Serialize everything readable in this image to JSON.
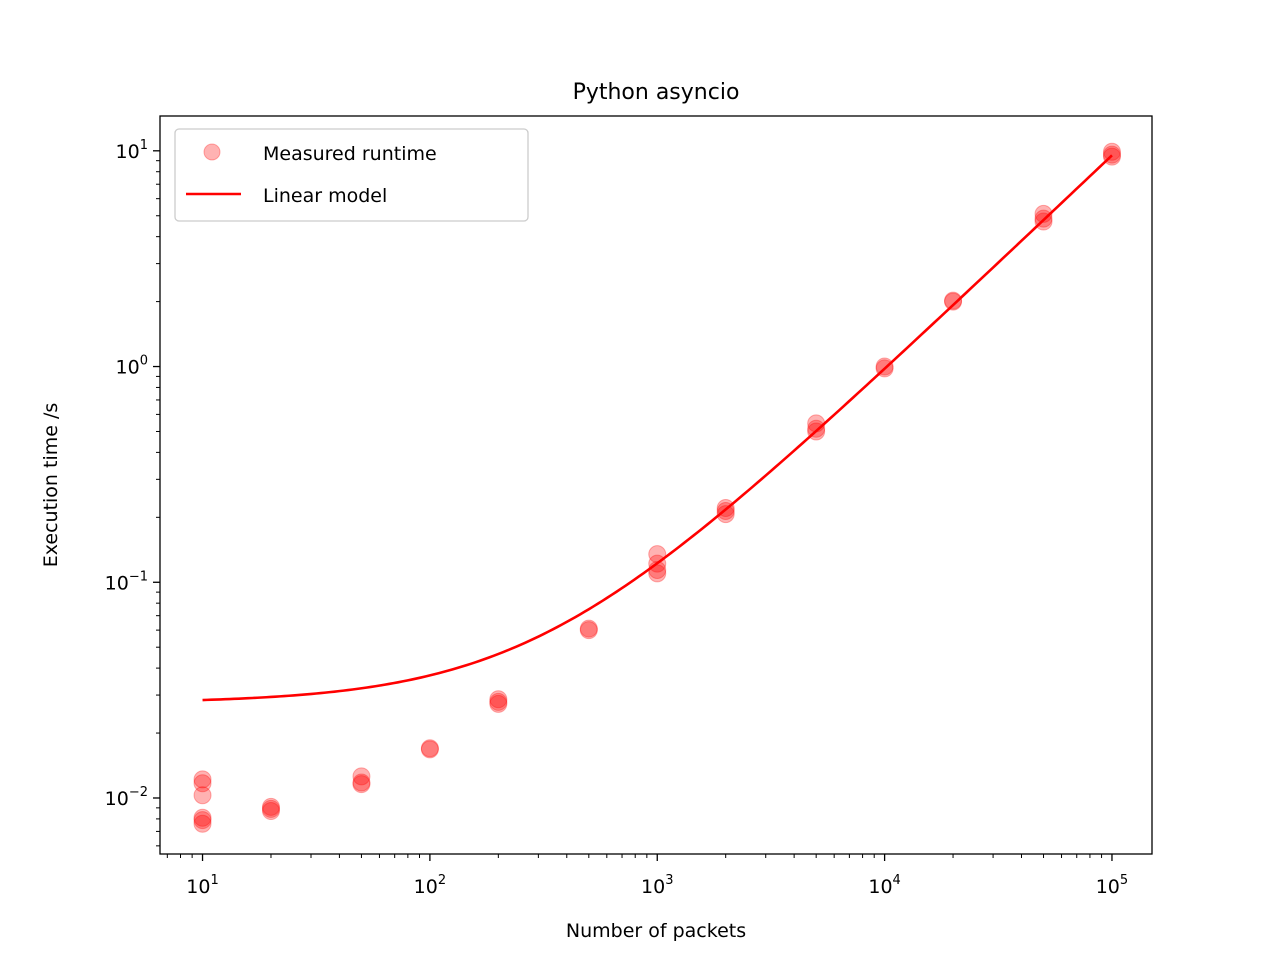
{
  "chart_data": {
    "type": "scatter",
    "title": "Python asyncio",
    "xlabel": "Number of packets",
    "ylabel": "Execution time /s",
    "xscale": "log",
    "yscale": "log",
    "xlim": [
      6.5,
      150000
    ],
    "ylim": [
      0.0055,
      14.5
    ],
    "grid": false,
    "legend_position": "top-left",
    "x_ticks": [
      {
        "base": "10",
        "exp": "1",
        "value": 10
      },
      {
        "base": "10",
        "exp": "2",
        "value": 100
      },
      {
        "base": "10",
        "exp": "3",
        "value": 1000
      },
      {
        "base": "10",
        "exp": "4",
        "value": 10000
      },
      {
        "base": "10",
        "exp": "5",
        "value": 100000
      }
    ],
    "y_ticks": [
      {
        "base": "10",
        "exp": "−2",
        "value": 0.01
      },
      {
        "base": "10",
        "exp": "−1",
        "value": 0.1
      },
      {
        "base": "10",
        "exp": "0",
        "value": 1
      },
      {
        "base": "10",
        "exp": "1",
        "value": 10
      }
    ],
    "series": [
      {
        "name": "Measured runtime",
        "kind": "scatter",
        "color": "#ff0000",
        "points": [
          {
            "x": 10,
            "y": 0.0076
          },
          {
            "x": 10,
            "y": 0.0079
          },
          {
            "x": 10,
            "y": 0.0081
          },
          {
            "x": 10,
            "y": 0.0103
          },
          {
            "x": 10,
            "y": 0.0117
          },
          {
            "x": 10,
            "y": 0.0122
          },
          {
            "x": 20,
            "y": 0.0087
          },
          {
            "x": 20,
            "y": 0.0089
          },
          {
            "x": 20,
            "y": 0.0091
          },
          {
            "x": 50,
            "y": 0.0116
          },
          {
            "x": 50,
            "y": 0.0118
          },
          {
            "x": 50,
            "y": 0.0126
          },
          {
            "x": 100,
            "y": 0.0168
          },
          {
            "x": 100,
            "y": 0.017
          },
          {
            "x": 200,
            "y": 0.0273
          },
          {
            "x": 200,
            "y": 0.0279
          },
          {
            "x": 200,
            "y": 0.0287
          },
          {
            "x": 500,
            "y": 0.06
          },
          {
            "x": 500,
            "y": 0.061
          },
          {
            "x": 1000,
            "y": 0.11
          },
          {
            "x": 1000,
            "y": 0.114
          },
          {
            "x": 1000,
            "y": 0.122
          },
          {
            "x": 1000,
            "y": 0.135
          },
          {
            "x": 2000,
            "y": 0.207
          },
          {
            "x": 2000,
            "y": 0.214
          },
          {
            "x": 2000,
            "y": 0.221
          },
          {
            "x": 5000,
            "y": 0.5
          },
          {
            "x": 5000,
            "y": 0.515
          },
          {
            "x": 5000,
            "y": 0.545
          },
          {
            "x": 10000,
            "y": 0.98
          },
          {
            "x": 10000,
            "y": 1.0
          },
          {
            "x": 20000,
            "y": 2.0
          },
          {
            "x": 20000,
            "y": 2.02
          },
          {
            "x": 50000,
            "y": 4.7
          },
          {
            "x": 50000,
            "y": 4.85
          },
          {
            "x": 50000,
            "y": 5.1
          },
          {
            "x": 100000,
            "y": 9.4
          },
          {
            "x": 100000,
            "y": 9.6
          },
          {
            "x": 100000,
            "y": 9.9
          }
        ]
      },
      {
        "name": "Linear model",
        "kind": "line",
        "color": "#ff0000",
        "model": {
          "intercept": 0.0275,
          "slope": 9.5e-05
        }
      }
    ]
  }
}
